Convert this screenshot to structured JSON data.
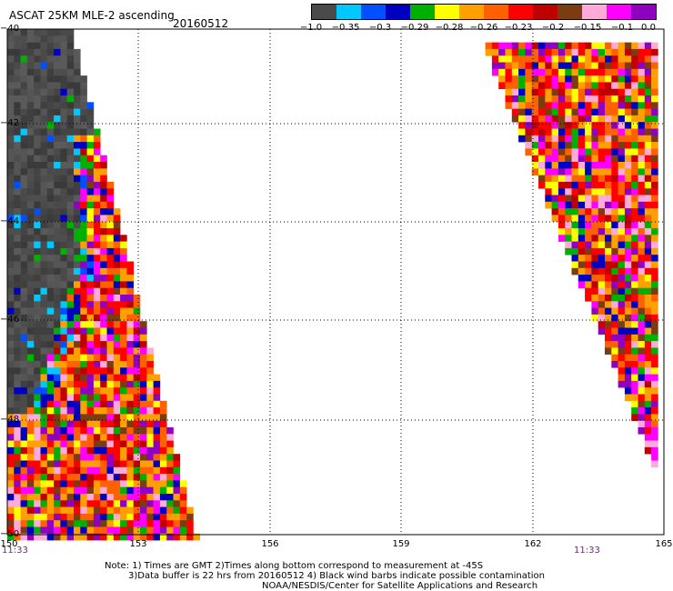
{
  "header": {
    "title": "ASCAT 25KM MLE-2 ascending",
    "date": "20160512"
  },
  "colorbar": {
    "colors": [
      "#4a4a4a",
      "#00c8ff",
      "#0050ff",
      "#0000c0",
      "#00b000",
      "#ffff00",
      "#ffa000",
      "#ff6000",
      "#ff0000",
      "#c00000",
      "#7a3c10",
      "#ffaad8",
      "#ff00ff",
      "#9000c0"
    ],
    "labels": [
      "-1.0",
      "-0.35",
      "-0.3",
      "-0.29",
      "-0.28",
      "-0.26",
      "-0.23",
      "-0.2",
      "-0.15",
      "-0.1",
      "0.0"
    ]
  },
  "map": {
    "lon_ticks": [
      "150",
      "153",
      "156",
      "159",
      "162",
      "165"
    ],
    "lat_ticks": [
      "-40",
      "-42",
      "-44",
      "-46",
      "-48",
      "-50"
    ],
    "time_left": "11:33",
    "time_right": "11:33"
  },
  "footer": {
    "note_line1": "Note: 1) Times are GMT 2)Times along bottom correspond to measurement at -45S",
    "note_line2": "3)Data buffer is 22 hrs from 20160512 4) Black wind barbs indicate possible contamination",
    "credit": "NOAA/NESDIS/Center for Satellite Applications and Research"
  }
}
